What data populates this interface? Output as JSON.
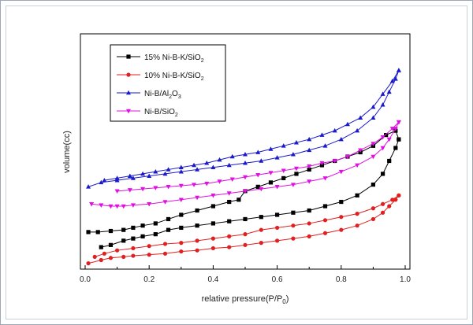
{
  "chart_data": {
    "type": "line",
    "title": "",
    "xlabel": "relative pressure(P/P0)",
    "ylabel": "volume(cc)",
    "xlim": [
      0.0,
      1.0
    ],
    "ylim": [
      0,
      100
    ],
    "y_ticks_shown": false,
    "grid": false,
    "legend_position": "top-left",
    "x_ticks": [
      "0.0",
      "0.2",
      "0.4",
      "0.6",
      "0.8",
      "1.0"
    ],
    "series": [
      {
        "name": "15% Ni-B-K/SiO2",
        "name_base": "15% Ni-B-K/SiO",
        "name_sub": "2",
        "color": "#000000",
        "marker": "square",
        "adsorption": {
          "x": [
            0.05,
            0.08,
            0.12,
            0.15,
            0.18,
            0.22,
            0.26,
            0.3,
            0.35,
            0.4,
            0.45,
            0.5,
            0.55,
            0.6,
            0.65,
            0.7,
            0.75,
            0.8,
            0.85,
            0.9,
            0.93,
            0.95,
            0.97,
            0.98
          ],
          "y": [
            8,
            9,
            11,
            12,
            13,
            14,
            16,
            17,
            18,
            19,
            20,
            21,
            22,
            23,
            24,
            25,
            27,
            29,
            32,
            37,
            42,
            48,
            54,
            58
          ]
        },
        "desorption": {
          "x": [
            0.98,
            0.97,
            0.94,
            0.9,
            0.86,
            0.82,
            0.78,
            0.74,
            0.7,
            0.66,
            0.62,
            0.58,
            0.54,
            0.5,
            0.48,
            0.45,
            0.4,
            0.35,
            0.3,
            0.26,
            0.22,
            0.18,
            0.15,
            0.12,
            0.08,
            0.04,
            0.01
          ],
          "y": [
            58,
            62,
            60,
            55,
            52,
            50,
            48,
            46,
            44,
            42,
            40,
            38,
            36,
            34,
            30,
            29,
            27,
            25,
            23,
            21,
            19,
            18,
            17,
            16,
            15.5,
            15,
            15
          ]
        }
      },
      {
        "name": "10% Ni-B-K/SiO2",
        "name_base": "10% Ni-B-K/SiO",
        "name_sub": "2",
        "color": "#e02020",
        "marker": "circle",
        "adsorption": {
          "x": [
            0.01,
            0.05,
            0.08,
            0.12,
            0.15,
            0.2,
            0.25,
            0.3,
            0.35,
            0.4,
            0.45,
            0.5,
            0.55,
            0.6,
            0.65,
            0.7,
            0.75,
            0.8,
            0.85,
            0.9,
            0.93,
            0.95,
            0.97,
            0.98
          ],
          "y": [
            0.5,
            2,
            3,
            3.5,
            4,
            4.5,
            5,
            6,
            6.5,
            7.5,
            8,
            9,
            10,
            11,
            12,
            13,
            14.5,
            16,
            18,
            21,
            24,
            27,
            30,
            32
          ]
        },
        "desorption": {
          "x": [
            0.98,
            0.96,
            0.93,
            0.9,
            0.85,
            0.8,
            0.75,
            0.7,
            0.65,
            0.6,
            0.55,
            0.5,
            0.45,
            0.4,
            0.35,
            0.3,
            0.25,
            0.2,
            0.15,
            0.1,
            0.06,
            0.03
          ],
          "y": [
            32,
            30,
            28,
            26,
            23.5,
            22,
            20.5,
            19,
            18,
            17,
            16,
            14,
            13,
            12,
            11,
            10,
            9.5,
            8.5,
            7.5,
            6.5,
            5,
            3.5
          ]
        }
      },
      {
        "name": "Ni-B/Al2O3",
        "name_parts": [
          {
            "t": "Ni-B/Al",
            "sub": false
          },
          {
            "t": "2",
            "sub": true
          },
          {
            "t": "O",
            "sub": false
          },
          {
            "t": "3",
            "sub": true
          }
        ],
        "color": "#1a1acc",
        "marker": "triangle-up",
        "adsorption": {
          "x": [
            0.01,
            0.05,
            0.1,
            0.15,
            0.2,
            0.25,
            0.3,
            0.35,
            0.4,
            0.45,
            0.5,
            0.55,
            0.6,
            0.65,
            0.7,
            0.75,
            0.8,
            0.85,
            0.9,
            0.93,
            0.95,
            0.97,
            0.98
          ],
          "y": [
            36,
            38,
            39,
            40,
            41,
            42,
            43,
            44,
            45,
            46,
            47,
            48,
            49.5,
            51,
            53,
            55,
            58,
            62,
            68,
            74,
            80,
            86,
            90
          ]
        },
        "desorption": {
          "x": [
            0.98,
            0.96,
            0.93,
            0.9,
            0.86,
            0.82,
            0.78,
            0.74,
            0.7,
            0.66,
            0.62,
            0.58,
            0.54,
            0.5,
            0.46,
            0.42,
            0.38,
            0.34,
            0.3,
            0.26,
            0.22,
            0.18,
            0.14,
            0.1,
            0.06
          ],
          "y": [
            90,
            85,
            79,
            73,
            68,
            65,
            62,
            60,
            58,
            56.5,
            55,
            53.5,
            52,
            51,
            50,
            48.5,
            47,
            46,
            45,
            44,
            43,
            42,
            41,
            40,
            39
          ]
        }
      },
      {
        "name": "Ni-B/SiO2",
        "name_base": "Ni-B/SiO",
        "name_sub": "2",
        "color": "#e010e0",
        "marker": "triangle-down",
        "adsorption": {
          "x": [
            0.02,
            0.05,
            0.08,
            0.1,
            0.12,
            0.15,
            0.2,
            0.25,
            0.3,
            0.35,
            0.4,
            0.45,
            0.5,
            0.55,
            0.6,
            0.65,
            0.7,
            0.75,
            0.8,
            0.85,
            0.9,
            0.93,
            0.95,
            0.97,
            0.98
          ],
          "y": [
            28,
            27.5,
            27,
            27,
            27,
            27.5,
            28,
            29,
            30,
            31,
            32,
            33,
            34,
            35,
            36,
            37,
            38.5,
            40,
            43,
            46,
            50,
            54,
            58,
            63,
            66
          ]
        },
        "desorption": {
          "x": [
            0.98,
            0.96,
            0.93,
            0.9,
            0.86,
            0.82,
            0.78,
            0.74,
            0.7,
            0.66,
            0.62,
            0.58,
            0.54,
            0.5,
            0.46,
            0.42,
            0.38,
            0.34,
            0.3,
            0.26,
            0.22,
            0.18,
            0.14,
            0.1
          ],
          "y": [
            66,
            63,
            59,
            56,
            53,
            50,
            48,
            47,
            45.5,
            44.5,
            43.5,
            42.5,
            41.5,
            40.5,
            39.5,
            38.5,
            37.5,
            37,
            36.5,
            36,
            35.5,
            35,
            34.5,
            34
          ]
        }
      }
    ]
  }
}
